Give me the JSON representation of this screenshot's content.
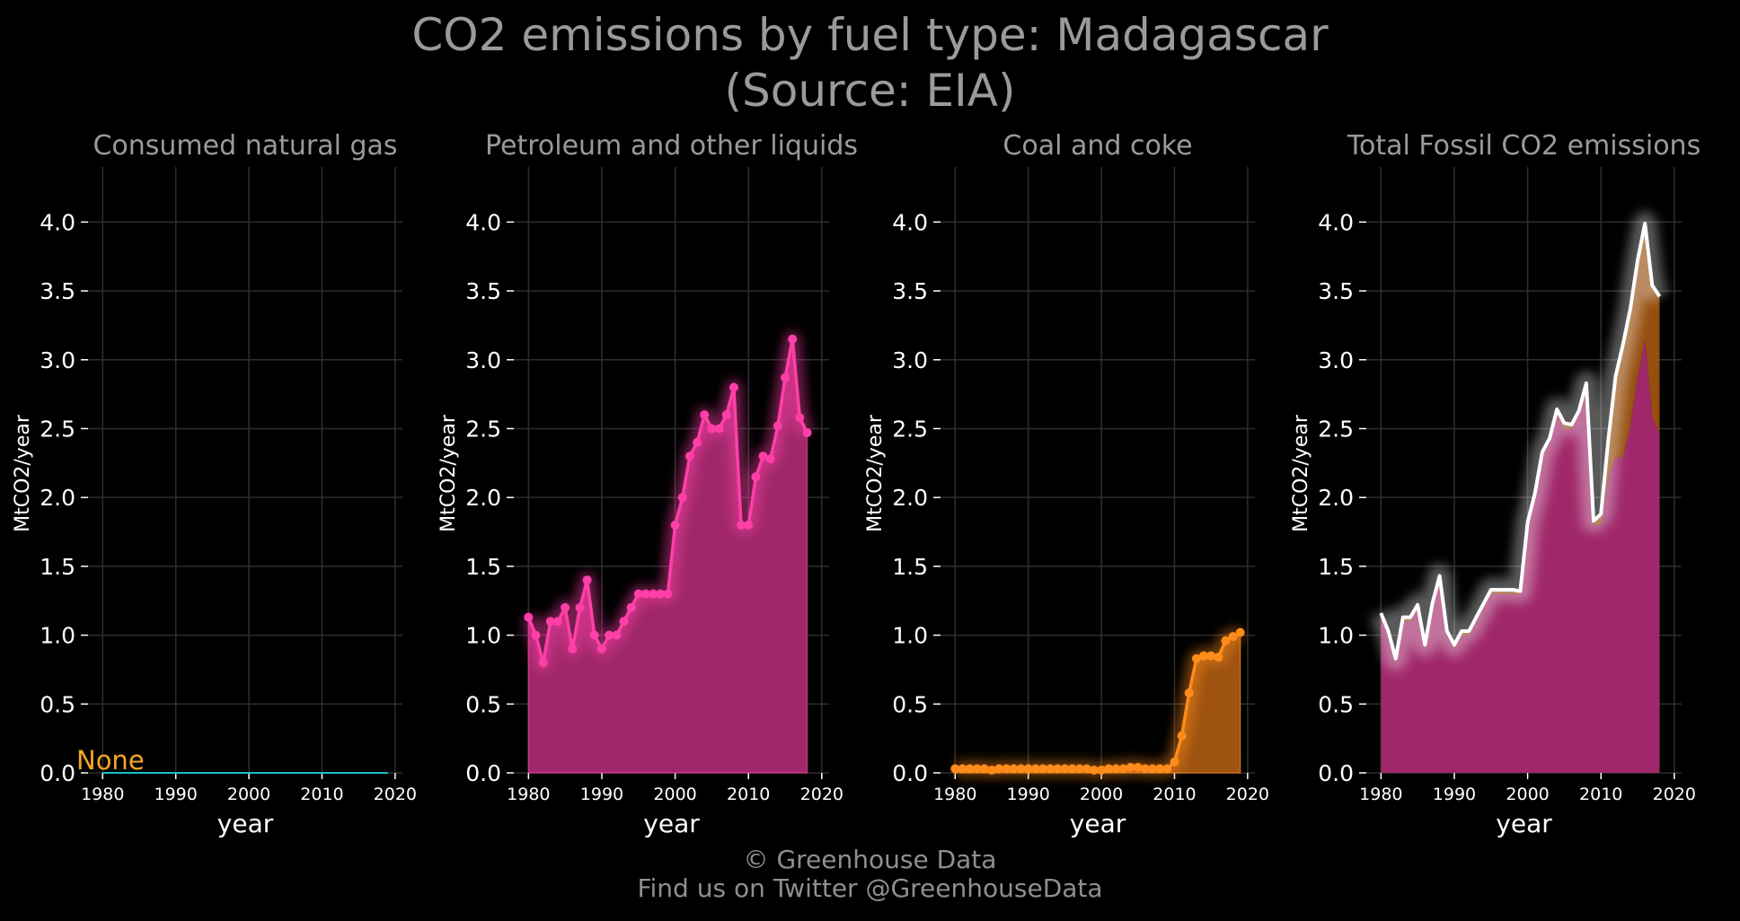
{
  "title": {
    "line1": "CO2 emissions by fuel type: Madagascar",
    "line2": "(Source: EIA)"
  },
  "footer": {
    "line1": "© Greenhouse Data",
    "line2": "Find us on Twitter @GreenhouseData"
  },
  "colors": {
    "gas": "#17bfc8",
    "gas_label": "#f5a623",
    "petroleum": "#ff3fa8",
    "petroleum_fill": "#a0286a",
    "coal": "#ff8c1a",
    "coal_fill": "#9e5310",
    "total": "#ffffff"
  },
  "chart_data": [
    {
      "type": "area",
      "title": "Consumed natural gas",
      "xlabel": "year",
      "ylabel": "MtCO2/year",
      "xlim": [
        1978,
        2021
      ],
      "ylim": [
        0,
        4.4
      ],
      "x_ticks": [
        1980,
        1990,
        2000,
        2010,
        2020
      ],
      "y_ticks": [
        0.0,
        0.5,
        1.0,
        1.5,
        2.0,
        2.5,
        3.0,
        3.5,
        4.0
      ],
      "annotation": "None",
      "series": [
        {
          "x": [
            1980,
            2019
          ],
          "values": [
            0,
            0
          ]
        }
      ]
    },
    {
      "type": "area",
      "title": "Petroleum and other liquids",
      "xlabel": "year",
      "ylabel": "MtCO2/year",
      "xlim": [
        1978,
        2021
      ],
      "ylim": [
        0,
        4.4
      ],
      "x_ticks": [
        1980,
        1990,
        2000,
        2010,
        2020
      ],
      "y_ticks": [
        0.0,
        0.5,
        1.0,
        1.5,
        2.0,
        2.5,
        3.0,
        3.5,
        4.0
      ],
      "series": [
        {
          "x": [
            1980,
            1981,
            1982,
            1983,
            1984,
            1985,
            1986,
            1987,
            1988,
            1989,
            1990,
            1991,
            1992,
            1993,
            1994,
            1995,
            1996,
            1997,
            1998,
            1999,
            2000,
            2001,
            2002,
            2003,
            2004,
            2005,
            2006,
            2007,
            2008,
            2009,
            2010,
            2011,
            2012,
            2013,
            2014,
            2015,
            2016,
            2017,
            2018
          ],
          "values": [
            1.13,
            1.0,
            0.8,
            1.1,
            1.1,
            1.2,
            0.9,
            1.2,
            1.4,
            1.0,
            0.9,
            1.0,
            1.0,
            1.1,
            1.2,
            1.3,
            1.3,
            1.3,
            1.3,
            1.3,
            1.8,
            2.0,
            2.3,
            2.4,
            2.6,
            2.5,
            2.5,
            2.6,
            2.8,
            1.8,
            1.8,
            2.15,
            2.3,
            2.28,
            2.52,
            2.87,
            3.15,
            2.58,
            2.47
          ]
        }
      ]
    },
    {
      "type": "area",
      "title": "Coal and coke",
      "xlabel": "year",
      "ylabel": "MtCO2/year",
      "xlim": [
        1978,
        2021
      ],
      "ylim": [
        0,
        4.4
      ],
      "x_ticks": [
        1980,
        1990,
        2000,
        2010,
        2020
      ],
      "y_ticks": [
        0.0,
        0.5,
        1.0,
        1.5,
        2.0,
        2.5,
        3.0,
        3.5,
        4.0
      ],
      "series": [
        {
          "x": [
            1980,
            1981,
            1982,
            1983,
            1984,
            1985,
            1986,
            1987,
            1988,
            1989,
            1990,
            1991,
            1992,
            1993,
            1994,
            1995,
            1996,
            1997,
            1998,
            1999,
            2000,
            2001,
            2002,
            2003,
            2004,
            2005,
            2006,
            2007,
            2008,
            2009,
            2010,
            2011,
            2012,
            2013,
            2014,
            2015,
            2016,
            2017,
            2018,
            2019
          ],
          "values": [
            0.03,
            0.03,
            0.03,
            0.03,
            0.03,
            0.02,
            0.03,
            0.03,
            0.03,
            0.03,
            0.03,
            0.03,
            0.03,
            0.03,
            0.03,
            0.03,
            0.03,
            0.03,
            0.03,
            0.02,
            0.02,
            0.03,
            0.03,
            0.03,
            0.04,
            0.04,
            0.03,
            0.03,
            0.03,
            0.03,
            0.08,
            0.27,
            0.58,
            0.83,
            0.85,
            0.85,
            0.84,
            0.96,
            0.99,
            1.02
          ]
        }
      ]
    },
    {
      "type": "area",
      "title": "Total Fossil CO2 emissions",
      "xlabel": "year",
      "ylabel": "MtCO2/year",
      "xlim": [
        1978,
        2021
      ],
      "ylim": [
        0,
        4.4
      ],
      "x_ticks": [
        1980,
        1990,
        2000,
        2010,
        2020
      ],
      "y_ticks": [
        0.0,
        0.5,
        1.0,
        1.5,
        2.0,
        2.5,
        3.0,
        3.5,
        4.0
      ],
      "series": [
        {
          "x": [
            1980,
            1981,
            1982,
            1983,
            1984,
            1985,
            1986,
            1987,
            1988,
            1989,
            1990,
            1991,
            1992,
            1993,
            1994,
            1995,
            1996,
            1997,
            1998,
            1999,
            2000,
            2001,
            2002,
            2003,
            2004,
            2005,
            2006,
            2007,
            2008,
            2009,
            2010,
            2011,
            2012,
            2013,
            2014,
            2015,
            2016,
            2017,
            2018
          ],
          "values": [
            1.16,
            1.03,
            0.83,
            1.13,
            1.13,
            1.22,
            0.93,
            1.23,
            1.43,
            1.03,
            0.93,
            1.03,
            1.03,
            1.13,
            1.23,
            1.33,
            1.33,
            1.33,
            1.33,
            1.32,
            1.82,
            2.03,
            2.33,
            2.43,
            2.64,
            2.54,
            2.53,
            2.63,
            2.83,
            1.83,
            1.88,
            2.42,
            2.88,
            3.11,
            3.37,
            3.72,
            3.99,
            3.54,
            3.46
          ]
        }
      ]
    }
  ]
}
